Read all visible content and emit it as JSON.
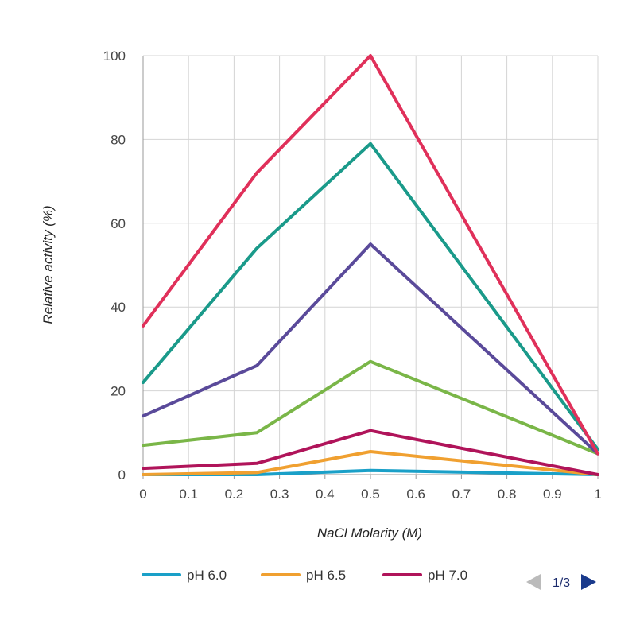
{
  "chart_data": {
    "type": "line",
    "xlabel": "NaCl Molarity (M)",
    "ylabel": "Relative activity (%)",
    "xlim": [
      0,
      1
    ],
    "ylim": [
      0,
      100
    ],
    "x_ticks": [
      "0",
      "0.1",
      "0.2",
      "0.3",
      "0.4",
      "0.5",
      "0.6",
      "0.7",
      "0.8",
      "0.9",
      "1"
    ],
    "y_ticks": [
      "0",
      "20",
      "40",
      "60",
      "80",
      "100"
    ],
    "grid": true,
    "legend_position": "bottom",
    "x": [
      0,
      0.25,
      0.5,
      1
    ],
    "series": [
      {
        "name": "pH 6.0",
        "color": "#1aa0c8",
        "values": [
          0,
          0,
          1,
          0
        ]
      },
      {
        "name": "pH 6.5",
        "color": "#f0a030",
        "values": [
          0,
          0.5,
          5.5,
          0
        ]
      },
      {
        "name": "pH 7.0",
        "color": "#b0145a",
        "values": [
          1.5,
          2.7,
          10.5,
          0
        ]
      },
      {
        "name": "",
        "color": "#7ab648",
        "values": [
          7,
          10,
          27,
          5
        ]
      },
      {
        "name": "",
        "color": "#5a4a9a",
        "values": [
          14,
          26,
          55,
          5
        ]
      },
      {
        "name": "",
        "color": "#1a9a8a",
        "values": [
          22,
          54,
          79,
          6
        ]
      },
      {
        "name": "",
        "color": "#e0305a",
        "values": [
          35.5,
          72,
          100,
          5
        ]
      }
    ],
    "legend": {
      "page": "1/3"
    }
  }
}
